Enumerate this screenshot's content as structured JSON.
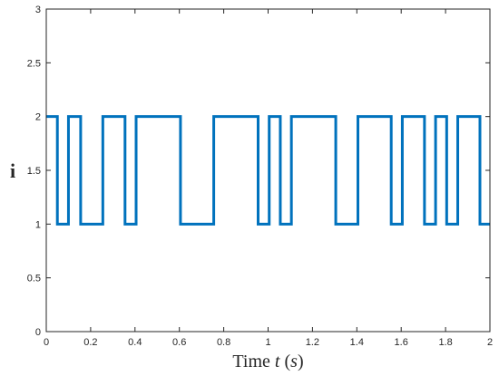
{
  "chart_data": {
    "type": "line",
    "step": true,
    "xlabel_parts": [
      {
        "text": "Time ",
        "italic": false
      },
      {
        "text": "t",
        "italic": true
      },
      {
        "text": " (",
        "italic": false
      },
      {
        "text": "s",
        "italic": true
      },
      {
        "text": ")",
        "italic": false
      }
    ],
    "ylabel": "i",
    "xlim": [
      0,
      2
    ],
    "ylim": [
      0,
      3
    ],
    "xticks": [
      0,
      0.2,
      0.4,
      0.6,
      0.8,
      1,
      1.2,
      1.4,
      1.6,
      1.8,
      2
    ],
    "xtick_labels": [
      "0",
      "0.2",
      "0.4",
      "0.6",
      "0.8",
      "1",
      "1.2",
      "1.4",
      "1.6",
      "1.8",
      "2"
    ],
    "yticks": [
      0,
      0.5,
      1,
      1.5,
      2,
      2.5,
      3
    ],
    "ytick_labels": [
      "0",
      "0.5",
      "1",
      "1.5",
      "2",
      "2.5",
      "3"
    ],
    "grid": false,
    "line_color": "#0072BD",
    "series": [
      {
        "x": [
          0,
          0.05,
          0.1,
          0.155,
          0.255,
          0.355,
          0.405,
          0.605,
          0.755,
          0.955,
          1.005,
          1.055,
          1.105,
          1.305,
          1.405,
          1.555,
          1.605,
          1.705,
          1.755,
          1.805,
          1.855,
          1.955,
          2.0
        ],
        "y": [
          2,
          1,
          2,
          1,
          2,
          1,
          2,
          1,
          2,
          1,
          2,
          1,
          2,
          1,
          2,
          1,
          2,
          1,
          2,
          1,
          2,
          1,
          1
        ]
      }
    ]
  }
}
